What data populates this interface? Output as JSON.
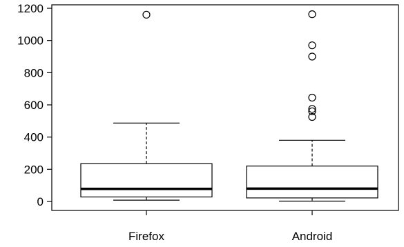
{
  "chart_data": {
    "type": "boxplot",
    "title": "",
    "xlabel": "",
    "ylabel": "",
    "ylim": [
      0,
      1200
    ],
    "yticks": [
      0,
      200,
      400,
      600,
      800,
      1000,
      1200
    ],
    "ytick_labels": [
      "0",
      "200",
      "400",
      "600",
      "800",
      "1000",
      "1200"
    ],
    "categories": [
      "Firefox",
      "Android"
    ],
    "grid": false,
    "boxes": [
      {
        "category": "Firefox",
        "whisker_low": 8,
        "q1": 28,
        "median": 78,
        "q3": 235,
        "whisker_high": 487,
        "outliers": [
          1160
        ]
      },
      {
        "category": "Android",
        "whisker_low": 2,
        "q1": 22,
        "median": 80,
        "q3": 220,
        "whisker_high": 380,
        "outliers": [
          1163,
          970,
          900,
          645,
          575,
          560,
          525
        ]
      }
    ]
  }
}
